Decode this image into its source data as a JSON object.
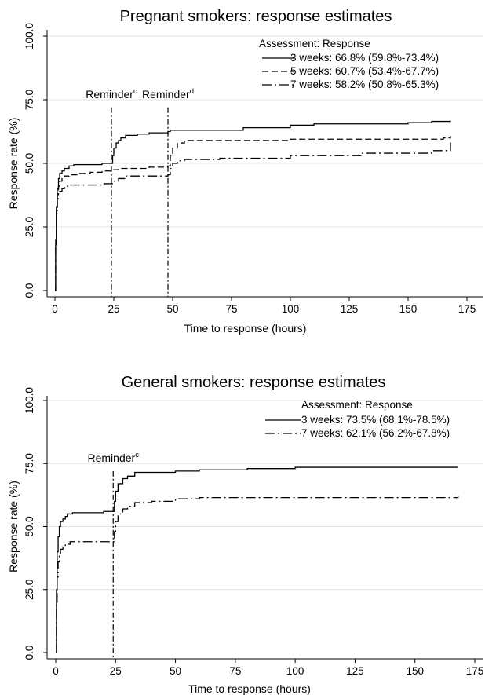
{
  "chart_data": [
    {
      "type": "line",
      "title": "Pregnant smokers: response estimates",
      "xlabel": "Time to response (hours)",
      "ylabel": "Response rate (%)",
      "xlim": [
        0,
        175
      ],
      "ylim": [
        0,
        100
      ],
      "xticks": [
        "0",
        "25",
        "50",
        "75",
        "100",
        "125",
        "150",
        "175"
      ],
      "yticks": [
        "0.0",
        "25.0",
        "50.0",
        "75.0",
        "100.0"
      ],
      "grid": true,
      "legend": {
        "position": "top-right",
        "header": "Assessment:  Response",
        "entries": [
          {
            "label": "3 weeks:  66.8% (59.8%-73.4%)",
            "dash": "solid"
          },
          {
            "label": "5 weeks:  60.7% (53.4%-67.7%)",
            "dash": "dashed"
          },
          {
            "label": "7 weeks:  58.2% (50.8%-65.3%)",
            "dash": "dashdot"
          }
        ]
      },
      "reference_lines": [
        {
          "x": 24,
          "label": "Reminder",
          "sup": "c"
        },
        {
          "x": 48,
          "label": "Reminder",
          "sup": "d"
        }
      ],
      "series": [
        {
          "name": "3 weeks",
          "dash": "solid",
          "x": [
            0,
            0.3,
            0.6,
            1,
            1.5,
            2,
            3,
            4,
            6,
            8,
            10,
            15,
            20,
            24,
            24.5,
            25,
            26,
            27,
            28,
            30,
            35,
            40,
            48,
            49,
            60,
            75,
            80,
            100,
            110,
            130,
            150,
            160,
            168
          ],
          "y": [
            0,
            20,
            33,
            40,
            44,
            46,
            47,
            48,
            49,
            49.5,
            49.5,
            49.5,
            50,
            50,
            53,
            56,
            58,
            59,
            60,
            61,
            61.5,
            62,
            62.5,
            63,
            63,
            63,
            64,
            65,
            65.5,
            65.5,
            66,
            66.5,
            66.8
          ]
        },
        {
          "name": "5 weeks",
          "dash": "dashed",
          "x": [
            0,
            0.3,
            0.6,
            1,
            1.5,
            2,
            3,
            4,
            6,
            10,
            15,
            20,
            24,
            25,
            27,
            30,
            40,
            48,
            49,
            50,
            52,
            55,
            70,
            100,
            130,
            165,
            168
          ],
          "y": [
            0,
            18,
            32,
            38,
            41,
            43,
            44,
            45,
            45.5,
            46,
            46.5,
            47,
            47,
            47.5,
            48,
            48,
            48.5,
            49,
            53,
            56,
            58,
            59,
            59,
            59.5,
            59.5,
            60,
            60.7
          ]
        },
        {
          "name": "7 weeks",
          "dash": "dashdot",
          "x": [
            0,
            0.3,
            0.6,
            1,
            1.5,
            2,
            3,
            4,
            6,
            10,
            15,
            20,
            24,
            25,
            27,
            30,
            40,
            48,
            49,
            50,
            52,
            55,
            70,
            100,
            130,
            160,
            168
          ],
          "y": [
            0,
            18,
            31,
            36,
            38,
            39,
            40,
            41,
            41.5,
            41.5,
            41.5,
            42,
            42,
            43,
            44,
            45,
            45,
            45.5,
            48,
            50,
            51,
            51.5,
            52,
            53,
            54,
            55,
            58.2
          ]
        }
      ]
    },
    {
      "type": "line",
      "title": "General smokers: response estimates",
      "xlabel": "Time to response (hours)",
      "ylabel": "Response rate (%)",
      "xlim": [
        0,
        175
      ],
      "ylim": [
        0,
        100
      ],
      "xticks": [
        "0",
        "25",
        "50",
        "75",
        "100",
        "125",
        "150",
        "175"
      ],
      "yticks": [
        "0.0",
        "25.0",
        "50.0",
        "75.0",
        "100.0"
      ],
      "grid": true,
      "legend": {
        "position": "top-right",
        "header": "Assessment:  Response",
        "entries": [
          {
            "label": "3 weeks:  73.5% (68.1%-78.5%)",
            "dash": "solid"
          },
          {
            "label": "7 weeks:  62.1% (56.2%-67.8%)",
            "dash": "dashdot"
          }
        ]
      },
      "reference_lines": [
        {
          "x": 24,
          "label": "Reminder",
          "sup": "c"
        }
      ],
      "series": [
        {
          "name": "3 weeks",
          "dash": "solid",
          "x": [
            0,
            0.3,
            0.6,
            1,
            1.5,
            2,
            3,
            4,
            5,
            7,
            10,
            15,
            20,
            24,
            24.5,
            25,
            26,
            28,
            30,
            33,
            40,
            50,
            60,
            80,
            100,
            168
          ],
          "y": [
            0,
            25,
            40,
            46,
            50,
            52,
            53,
            54,
            55,
            55.5,
            55.5,
            55.5,
            56,
            56,
            60,
            64,
            67,
            69,
            70,
            71.5,
            71.5,
            72,
            72.5,
            73,
            73.5,
            73.5
          ]
        },
        {
          "name": "7 weeks",
          "dash": "dashdot",
          "x": [
            0,
            0.3,
            0.6,
            1,
            1.5,
            2,
            3,
            4,
            6,
            10,
            15,
            20,
            24,
            24.5,
            25,
            26,
            28,
            30,
            33,
            40,
            50,
            60,
            100,
            168
          ],
          "y": [
            0,
            20,
            30,
            36,
            39,
            41,
            42,
            43,
            44,
            44,
            44,
            44,
            44,
            48,
            52,
            55,
            57,
            58,
            59.5,
            60,
            61,
            61.5,
            61.5,
            62.1
          ]
        }
      ]
    }
  ]
}
